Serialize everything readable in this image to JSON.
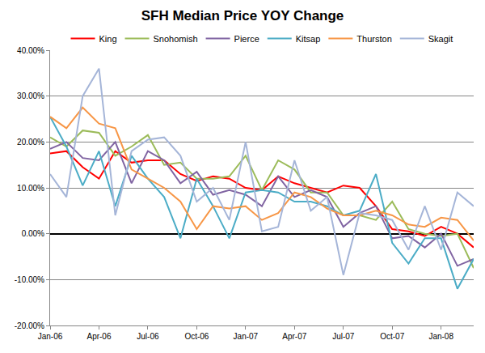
{
  "chart_data": {
    "type": "line",
    "title": "SFH Median Price YOY Change",
    "categories": [
      "Jan-06",
      null,
      null,
      "Apr-06",
      null,
      null,
      "Jul-06",
      null,
      null,
      "Oct-06",
      null,
      null,
      "Jan-07",
      null,
      null,
      "Apr-07",
      null,
      null,
      "Jul-07",
      null,
      null,
      "Oct-07",
      null,
      null,
      "Jan-08",
      null,
      null
    ],
    "series": [
      {
        "name": "King",
        "color": "#ff0000",
        "values": [
          17.5,
          18,
          14.5,
          12,
          18,
          15.5,
          16,
          16,
          13,
          11.5,
          12.5,
          12,
          10,
          9.5,
          12.5,
          11,
          10,
          9,
          10.5,
          10,
          6,
          1,
          0.5,
          -0.5,
          1.5,
          0,
          -3
        ]
      },
      {
        "name": "Snohomish",
        "color": "#9bbb59",
        "values": [
          21,
          19,
          22.5,
          22,
          17,
          19,
          21.5,
          15,
          15.5,
          12,
          12,
          12.5,
          17,
          9.5,
          16,
          14,
          9,
          9,
          4,
          4,
          3,
          7,
          1,
          0,
          -0.5,
          0,
          -7.5
        ]
      },
      {
        "name": "Pierce",
        "color": "#8064a2",
        "values": [
          18.5,
          20,
          16.5,
          16,
          20,
          11,
          18,
          16,
          11,
          13.5,
          8.5,
          9.5,
          8.5,
          6,
          12.5,
          8,
          9.5,
          8,
          1.5,
          4.5,
          6,
          -1,
          -0.5,
          -3,
          0,
          -7,
          -5.5
        ]
      },
      {
        "name": "Kitsap",
        "color": "#4bacc6",
        "values": [
          25.5,
          19,
          10.5,
          18,
          6,
          17,
          12,
          8,
          -1,
          12,
          6,
          -1,
          9,
          9.5,
          9,
          7,
          7,
          6,
          4,
          5,
          13,
          -2,
          -6.5,
          -1,
          -1,
          -12,
          -5.5
        ]
      },
      {
        "name": "Thurston",
        "color": "#f79646",
        "values": [
          25.5,
          23,
          27.5,
          24,
          23,
          14,
          12,
          10,
          7,
          1,
          6,
          5.5,
          6,
          3,
          4.5,
          9,
          8,
          5.5,
          4,
          4,
          5,
          4,
          2,
          1.5,
          3.5,
          3,
          -1.5
        ]
      },
      {
        "name": "Skagit",
        "color": "#a5b5d8",
        "values": [
          13,
          8,
          30,
          36,
          4,
          18,
          20.5,
          21,
          17,
          7,
          10,
          3,
          20,
          0.5,
          1.5,
          16,
          5,
          8,
          -9,
          4.5,
          4,
          3,
          -3.5,
          6,
          -3.5,
          9,
          6
        ]
      }
    ],
    "ylim": [
      -20,
      40
    ],
    "yticks": [
      {
        "value": -20,
        "label": "-20.00%"
      },
      {
        "value": -10,
        "label": "-10.00%"
      },
      {
        "value": 0,
        "label": "0.00%"
      },
      {
        "value": 10,
        "label": "10.00%"
      },
      {
        "value": 20,
        "label": "20.00%"
      },
      {
        "value": 30,
        "label": "30.00%"
      },
      {
        "value": 40,
        "label": "40.00%"
      }
    ],
    "grid": true,
    "legend": "top"
  }
}
